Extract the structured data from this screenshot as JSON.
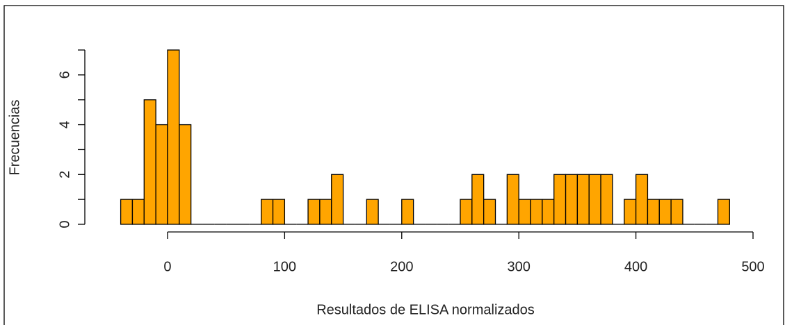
{
  "chart_data": {
    "type": "histogram",
    "x_label": "Resultados de ELISA normalizados",
    "y_label": "Frecuencias",
    "bins": [
      -40,
      -30,
      -20,
      -10,
      0,
      10,
      20,
      30,
      40,
      50,
      60,
      70,
      80,
      90,
      100,
      110,
      120,
      130,
      140,
      150,
      160,
      170,
      180,
      190,
      200,
      210,
      220,
      230,
      240,
      250,
      260,
      270,
      280,
      290,
      300,
      310,
      320,
      330,
      340,
      350,
      360,
      370,
      380,
      390,
      400,
      410,
      420,
      430,
      440,
      450,
      460,
      470,
      480
    ],
    "values": [
      1,
      1,
      5,
      4,
      7,
      4,
      0,
      0,
      0,
      0,
      0,
      0,
      1,
      1,
      0,
      0,
      1,
      1,
      2,
      0,
      0,
      1,
      0,
      0,
      1,
      0,
      0,
      0,
      0,
      1,
      2,
      1,
      0,
      2,
      1,
      1,
      1,
      2,
      2,
      2,
      2,
      2,
      0,
      1,
      2,
      1,
      1,
      1,
      0,
      0,
      0,
      1
    ],
    "color": "#ffa500",
    "xlim": [
      -40,
      500
    ],
    "xticks": [
      0,
      100,
      200,
      300,
      400,
      500
    ],
    "ylim": [
      0,
      7
    ],
    "yticks": [
      0,
      {
        "value": 1,
        "label": null
      },
      2,
      {
        "value": 3,
        "label": null
      },
      4,
      {
        "value": 5,
        "label": null
      },
      6,
      {
        "value": 7,
        "label": null
      }
    ]
  }
}
